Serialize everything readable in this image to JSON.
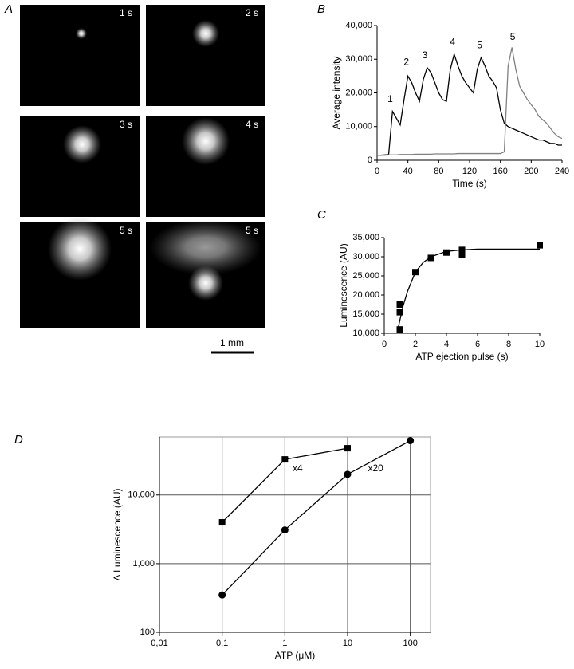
{
  "panel_a": {
    "label": "A",
    "frames": [
      "1 s",
      "2 s",
      "3 s",
      "4 s",
      "5 s",
      "5 s"
    ],
    "scale_bar": "1 mm"
  },
  "chart_data": [
    {
      "type": "line",
      "label": "B",
      "xlabel": "Time (s)",
      "ylabel": "Average intensity",
      "x": [
        0,
        5,
        10,
        15,
        20,
        25,
        30,
        35,
        40,
        45,
        50,
        55,
        60,
        65,
        70,
        75,
        80,
        85,
        90,
        95,
        100,
        105,
        110,
        115,
        120,
        125,
        130,
        135,
        140,
        145,
        150,
        155,
        160,
        165,
        170,
        175,
        180,
        185,
        190,
        195,
        200,
        205,
        210,
        215,
        220,
        225,
        230,
        235,
        240
      ],
      "series": [
        {
          "color": "#000000",
          "values": [
            1500,
            1500,
            1600,
            1700,
            14500,
            12500,
            10500,
            18000,
            25000,
            23000,
            20000,
            17500,
            24000,
            27500,
            26000,
            23000,
            20000,
            18000,
            17500,
            27000,
            31500,
            28000,
            25000,
            23000,
            21500,
            20000,
            27000,
            30500,
            28000,
            25000,
            23500,
            21500,
            15000,
            11000,
            10000,
            9500,
            9000,
            8500,
            8000,
            7500,
            7000,
            6500,
            6000,
            6000,
            5500,
            5000,
            5000,
            4500,
            4500
          ]
        },
        {
          "color": "#808080",
          "values": [
            1500,
            1500,
            1500,
            1600,
            1600,
            1600,
            1700,
            1700,
            1700,
            1700,
            1800,
            1800,
            1800,
            1800,
            1800,
            1900,
            1900,
            1900,
            1900,
            1900,
            1900,
            2000,
            2000,
            2000,
            2000,
            2000,
            2000,
            2000,
            2000,
            2000,
            2000,
            2000,
            2000,
            2500,
            28000,
            33500,
            27000,
            22000,
            20000,
            18000,
            16500,
            15000,
            13000,
            12000,
            11000,
            9500,
            8000,
            7000,
            6500
          ]
        }
      ],
      "xlim": [
        0,
        240
      ],
      "xticks": [
        0,
        40,
        80,
        120,
        160,
        200,
        240
      ],
      "ylim": [
        0,
        40000
      ],
      "yticks": [
        0,
        {
          "value": 10000,
          "label": "10,000"
        },
        {
          "value": 20000,
          "label": "20,000"
        },
        {
          "value": 30000,
          "label": "30,000"
        },
        {
          "value": 40000,
          "label": "40,000"
        }
      ],
      "annotations": [
        {
          "text": "1",
          "x": 17,
          "y": 18000
        },
        {
          "text": "2",
          "x": 38,
          "y": 29000
        },
        {
          "text": "3",
          "x": 62,
          "y": 31000
        },
        {
          "text": "4",
          "x": 98,
          "y": 35000
        },
        {
          "text": "5",
          "x": 133,
          "y": 34000
        },
        {
          "text": "5",
          "x": 176,
          "y": 36500
        }
      ]
    },
    {
      "type": "scatter",
      "label": "C",
      "xlabel": "ATP ejection pulse (s)",
      "ylabel": "Luminescence (AU)",
      "x": [
        1,
        1,
        1,
        2,
        3,
        4,
        5,
        5,
        10
      ],
      "values": [
        17500,
        15500,
        11000,
        26000,
        29700,
        31100,
        31800,
        30500,
        33000
      ],
      "color": "#000000",
      "fit": {
        "x": [
          0.9,
          1.2,
          1.5,
          2,
          2.5,
          3,
          4,
          5,
          6,
          8,
          10
        ],
        "values": [
          11500,
          17000,
          21000,
          26000,
          28500,
          30000,
          31400,
          31800,
          32000,
          32000,
          32000
        ]
      },
      "xlim": [
        0,
        10
      ],
      "xticks": [
        0,
        2,
        4,
        6,
        8,
        10
      ],
      "ylim": [
        10000,
        35000
      ],
      "yticks": [
        {
          "value": 10000,
          "label": "10,000"
        },
        {
          "value": 15000,
          "label": "15,000"
        },
        {
          "value": 20000,
          "label": "20,000"
        },
        {
          "value": 25000,
          "label": "25,000"
        },
        {
          "value": 30000,
          "label": "30,000"
        },
        {
          "value": 35000,
          "label": "35,000"
        }
      ]
    },
    {
      "type": "line",
      "label": "D",
      "xlabel": "ATP (μM)",
      "ylabel": "Δ Luminescence (AU)",
      "xlog": true,
      "ylog": true,
      "grid": true,
      "series": [
        {
          "color": "#000000",
          "marker": "square",
          "x": [
            0.1,
            1,
            10
          ],
          "values": [
            4000,
            33000,
            48000
          ]
        },
        {
          "color": "#000000",
          "marker": "circle",
          "x": [
            0.1,
            1,
            10,
            100
          ],
          "values": [
            350,
            3100,
            20000,
            62000
          ]
        }
      ],
      "xlim": [
        0.01,
        210
      ],
      "xticks": [
        {
          "value": 0.01,
          "label": "0,01"
        },
        {
          "value": 0.1,
          "label": "0,1"
        },
        1,
        10,
        100
      ],
      "ylim": [
        100,
        70000
      ],
      "yticks": [
        100,
        {
          "value": 1000,
          "label": "1,000"
        },
        {
          "value": 10000,
          "label": "10,000"
        }
      ],
      "annotations": [
        {
          "text": "x4",
          "x": 1.6,
          "y": 24000
        },
        {
          "text": "x20",
          "x": 28,
          "y": 24000
        }
      ]
    }
  ]
}
